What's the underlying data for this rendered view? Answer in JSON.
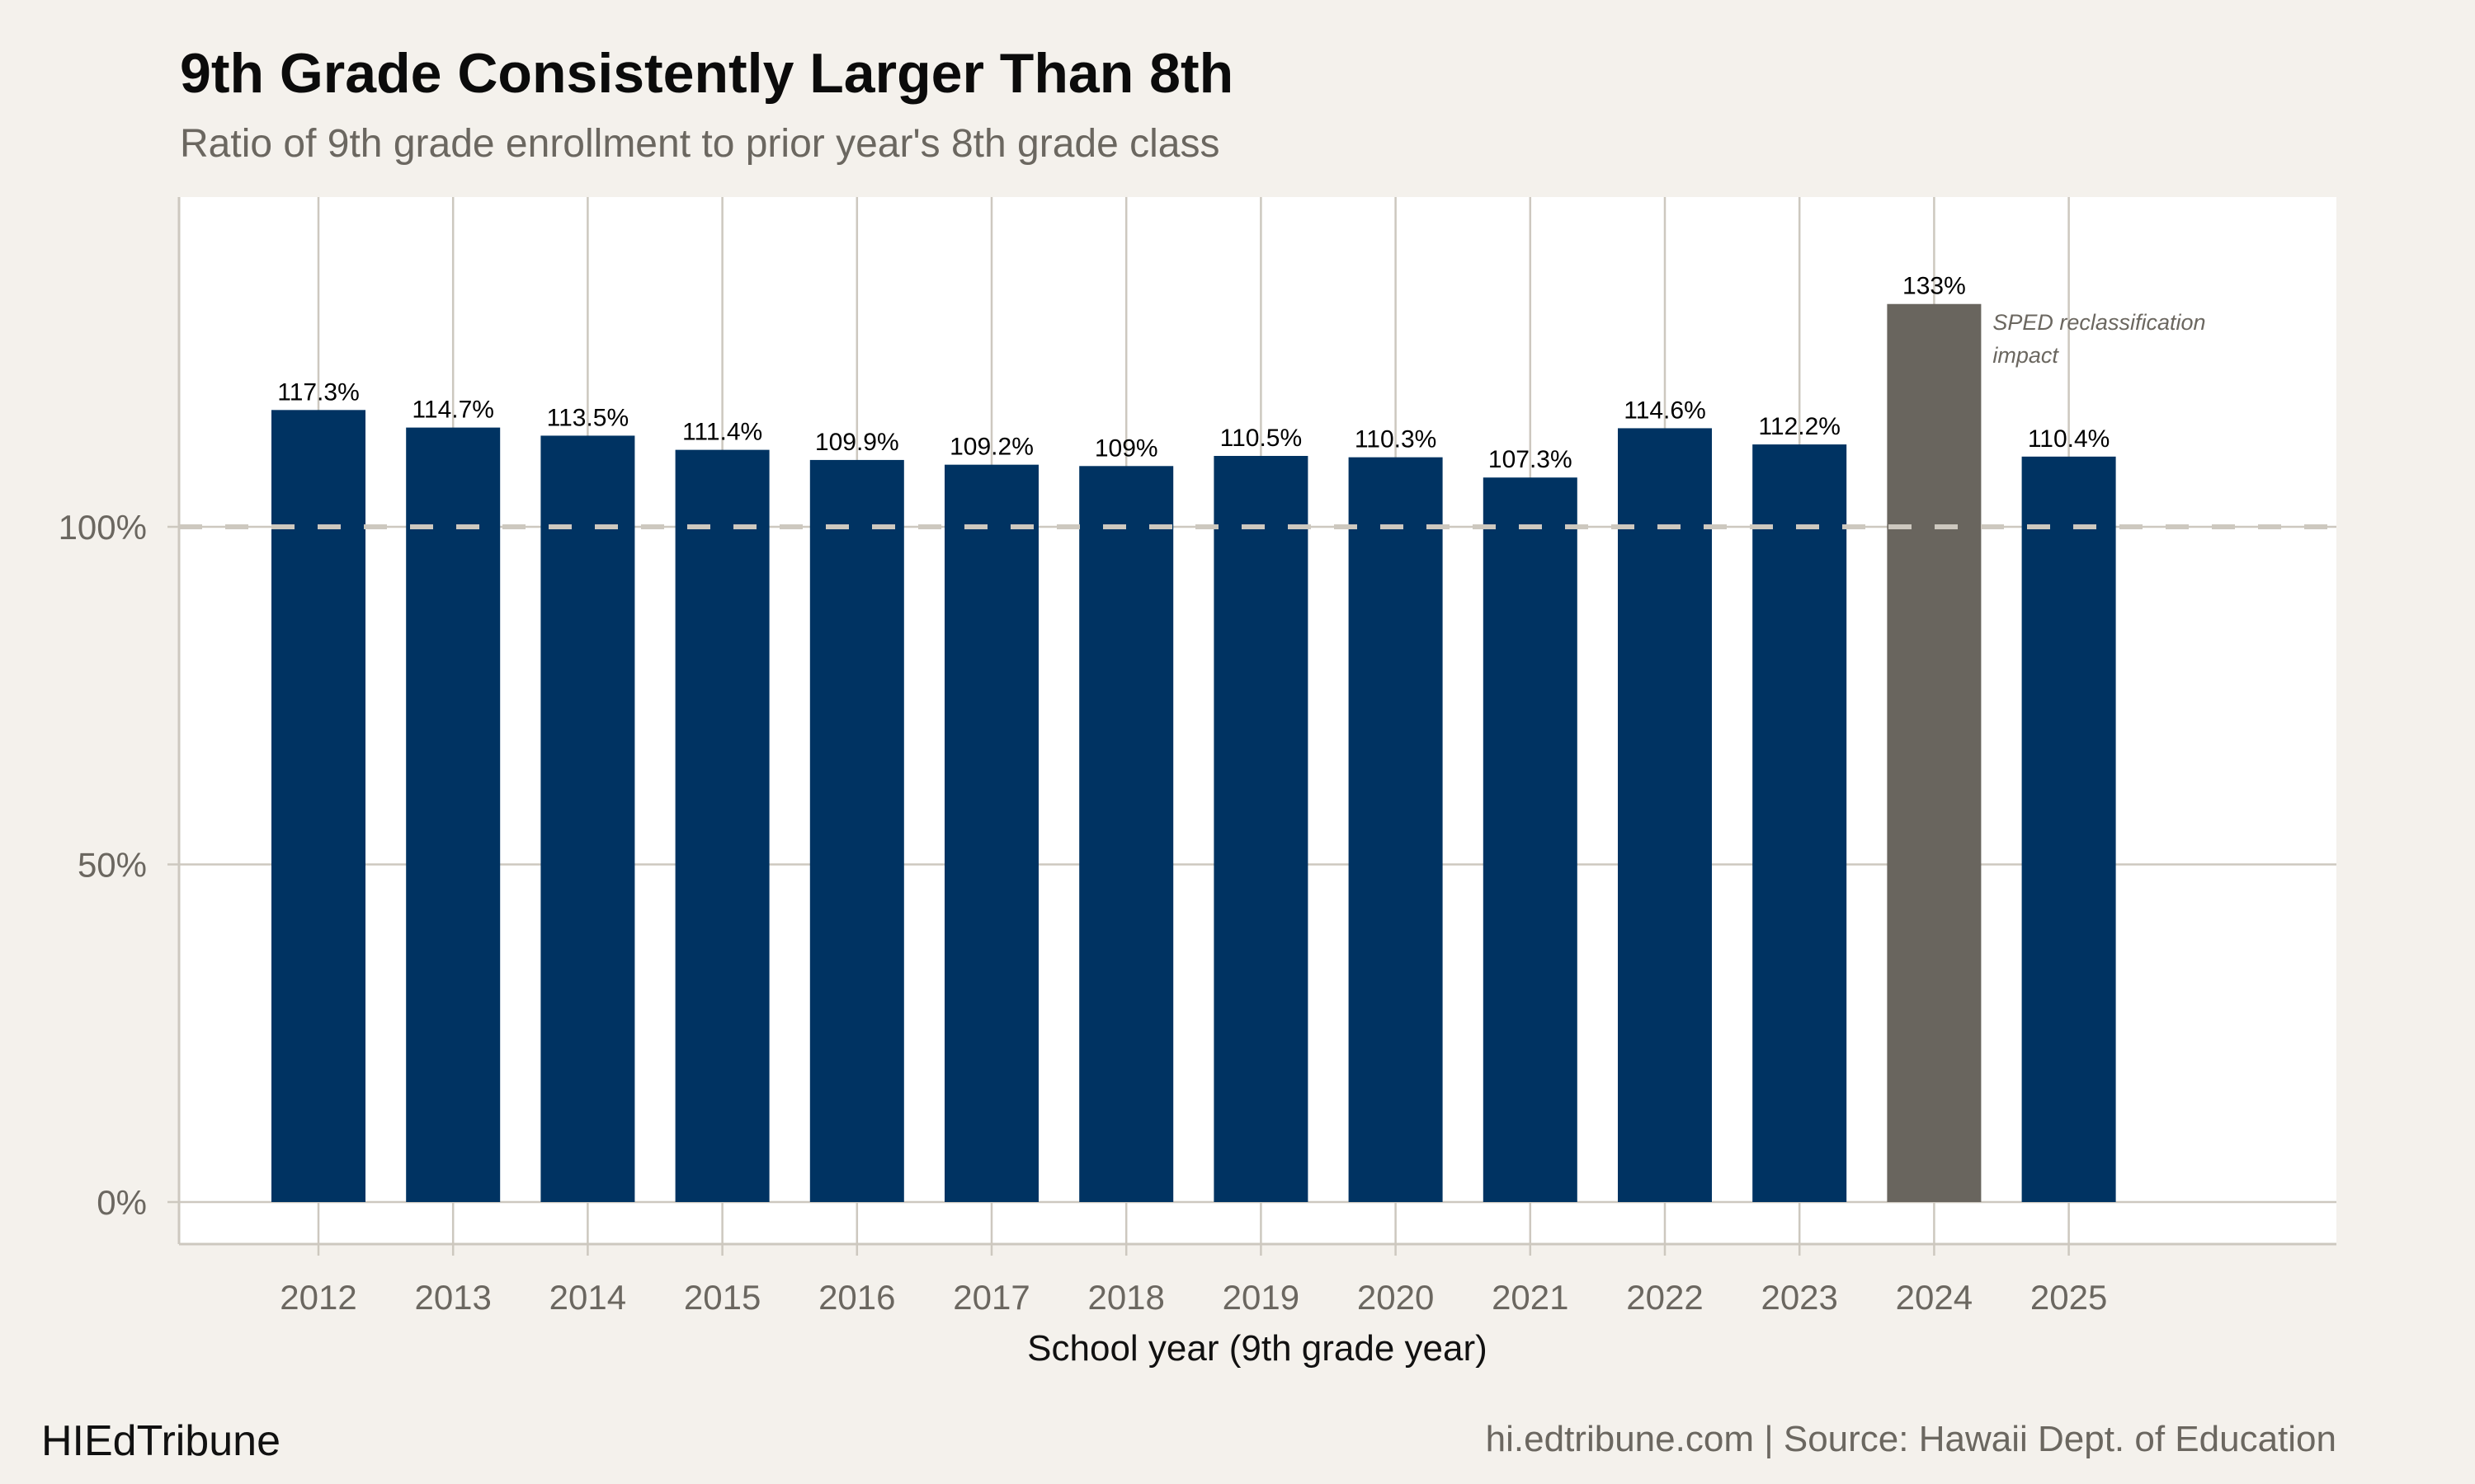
{
  "title": "9th Grade Consistently Larger Than 8th",
  "subtitle": "Ratio of 9th grade enrollment to prior year's 8th grade class",
  "footer": {
    "brand": "HIEdTribune",
    "source": "hi.edtribune.com | Source: Hawaii Dept. of Education"
  },
  "colors": {
    "background": "#f4f1ec",
    "panel": "#ffffff",
    "bar": "#003362",
    "highlight_bar": "#69655e",
    "grid": "#cdc8bf",
    "reference_line": "#cdc8bf"
  },
  "chart_data": {
    "type": "bar",
    "title": "9th Grade Consistently Larger Than 8th",
    "subtitle": "Ratio of 9th grade enrollment to prior year's 8th grade class",
    "xlabel": "School year (9th grade year)",
    "ylabel": "",
    "categories": [
      "2012",
      "2013",
      "2014",
      "2015",
      "2016",
      "2017",
      "2018",
      "2019",
      "2020",
      "2021",
      "2022",
      "2023",
      "2024",
      "2025"
    ],
    "values": [
      117.3,
      114.7,
      113.5,
      111.4,
      109.9,
      109.2,
      109,
      110.5,
      110.3,
      107.3,
      114.6,
      112.2,
      133,
      110.4
    ],
    "data_labels": [
      "117.3%",
      "114.7%",
      "113.5%",
      "111.4%",
      "109.9%",
      "109.2%",
      "109%",
      "110.5%",
      "110.3%",
      "107.3%",
      "114.6%",
      "112.2%",
      "133%",
      "110.4%"
    ],
    "highlight_category": "2024",
    "yticks": [
      0,
      50,
      100
    ],
    "ytick_labels": [
      "0%",
      "50%",
      "100%"
    ],
    "ylim": [
      -6,
      149
    ],
    "reference_line": {
      "value": 100,
      "style": "dashed"
    },
    "annotation": {
      "category": "2024",
      "lines": [
        "SPED reclassification",
        "impact"
      ]
    },
    "grid": true,
    "legend": "none"
  }
}
